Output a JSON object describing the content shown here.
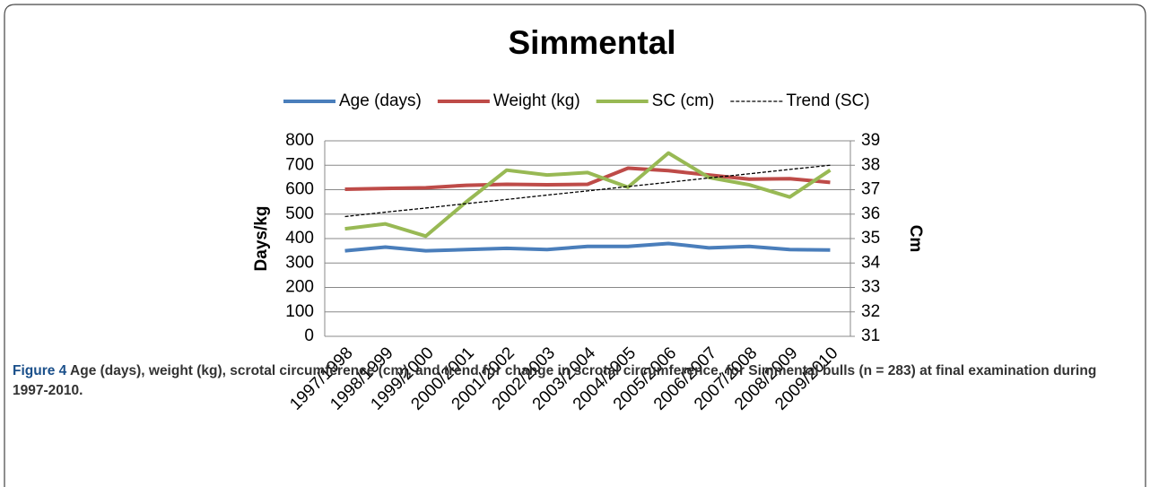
{
  "chart_data": {
    "type": "line",
    "title": "Simmental",
    "categories": [
      "1997/1998",
      "1998/1999",
      "1999/2000",
      "2000/2001",
      "2001/2002",
      "2002/2003",
      "2003/2004",
      "2004/2005",
      "2005/2006",
      "2006/2007",
      "2007/2008",
      "2008/2009",
      "2009/2010"
    ],
    "series": [
      {
        "name": "Age (days)",
        "color": "#4a7ebb",
        "values": [
          350,
          365,
          350,
          355,
          360,
          355,
          368,
          368,
          380,
          362,
          368,
          355,
          353
        ]
      },
      {
        "name": "Weight (kg)",
        "color": "#be4b48",
        "values": [
          602,
          605,
          608,
          618,
          622,
          620,
          622,
          688,
          678,
          660,
          643,
          645,
          630
        ]
      },
      {
        "name": "SC (cm)",
        "color": "#98b954",
        "axis": "y2",
        "values": [
          35.4,
          35.6,
          35.1,
          36.5,
          37.8,
          37.6,
          37.7,
          37.1,
          38.5,
          37.5,
          37.2,
          36.7,
          37.8
        ]
      },
      {
        "name": "Trend (SC)",
        "color": "#000000",
        "axis": "y2",
        "dash": true,
        "values": [
          35.9,
          36.08,
          36.25,
          36.43,
          36.6,
          36.78,
          36.95,
          37.13,
          37.3,
          37.48,
          37.65,
          37.83,
          38.0
        ]
      }
    ],
    "ylabel": "Days/kg",
    "y2label": "Cm",
    "ylim": [
      0,
      800
    ],
    "yticks": [
      0,
      100,
      200,
      300,
      400,
      500,
      600,
      700,
      800
    ],
    "y2lim": [
      31,
      39
    ],
    "y2ticks": [
      31,
      32,
      33,
      34,
      35,
      36,
      37,
      38,
      39
    ],
    "grid": true,
    "legend": "top"
  },
  "caption": {
    "label": "Figure 4",
    "text": "Age (days), weight (kg), scrotal circumference (cm), and trend for change in scrotal circumference, for Simmental bulls (n = 283) at final examination during 1997-2010."
  }
}
